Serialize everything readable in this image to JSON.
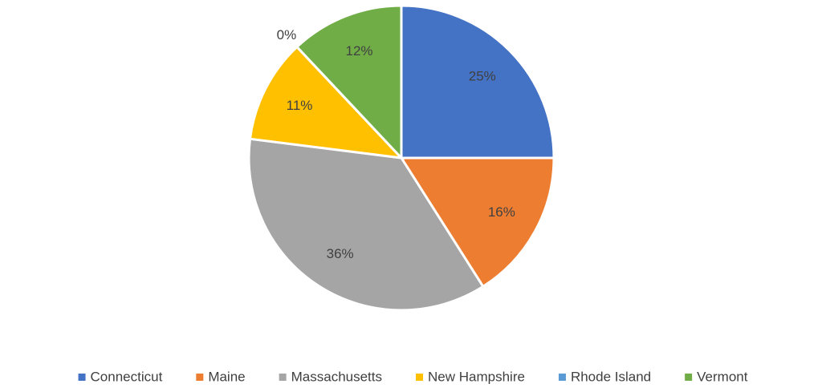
{
  "chart_data": {
    "type": "pie",
    "categories": [
      "Connecticut",
      "Maine",
      "Massachusetts",
      "New Hampshire",
      "Rhode Island",
      "Vermont"
    ],
    "values": [
      25,
      16,
      36,
      11,
      0,
      12
    ],
    "value_labels": [
      "25%",
      "16%",
      "36%",
      "11%",
      "0%",
      "12%"
    ],
    "colors": [
      "#4472c4",
      "#ed7d31",
      "#a5a5a5",
      "#ffc000",
      "#5b9bd5",
      "#70ad47"
    ],
    "legend": "bottom"
  }
}
